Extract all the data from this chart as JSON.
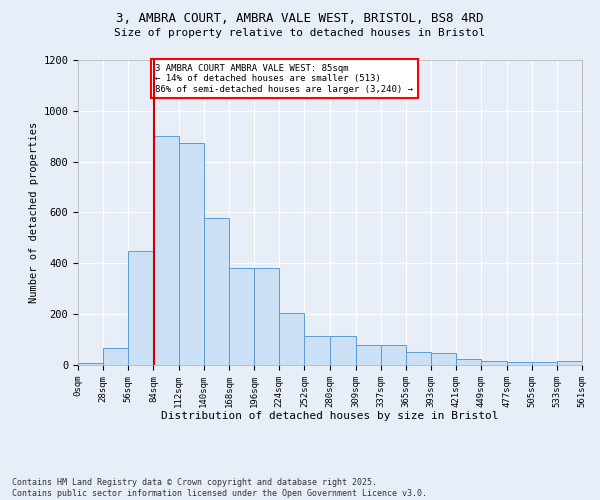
{
  "title_line1": "3, AMBRA COURT, AMBRA VALE WEST, BRISTOL, BS8 4RD",
  "title_line2": "Size of property relative to detached houses in Bristol",
  "xlabel": "Distribution of detached houses by size in Bristol",
  "ylabel": "Number of detached properties",
  "bar_color": "#cce0f5",
  "bar_edge_color": "#5b9bd5",
  "background_color": "#e8eef8",
  "grid_color": "#ffffff",
  "annotation_text": "3 AMBRA COURT AMBRA VALE WEST: 85sqm\n← 14% of detached houses are smaller (513)\n86% of semi-detached houses are larger (3,240) →",
  "vline_x": 85,
  "vline_color": "#cc0000",
  "footer_line1": "Contains HM Land Registry data © Crown copyright and database right 2025.",
  "footer_line2": "Contains public sector information licensed under the Open Government Licence v3.0.",
  "bin_edges": [
    0,
    28,
    56,
    84,
    112,
    140,
    168,
    196,
    224,
    252,
    280,
    309,
    337,
    365,
    393,
    421,
    449,
    477,
    505,
    533,
    561
  ],
  "bin_labels": [
    "0sqm",
    "28sqm",
    "56sqm",
    "84sqm",
    "112sqm",
    "140sqm",
    "168sqm",
    "196sqm",
    "224sqm",
    "252sqm",
    "280sqm",
    "309sqm",
    "337sqm",
    "365sqm",
    "393sqm",
    "421sqm",
    "449sqm",
    "477sqm",
    "505sqm",
    "533sqm",
    "561sqm"
  ],
  "bar_heights": [
    8,
    65,
    450,
    900,
    875,
    580,
    380,
    380,
    205,
    115,
    115,
    80,
    80,
    50,
    47,
    22,
    15,
    13,
    12,
    15,
    0
  ],
  "ylim": [
    0,
    1200
  ],
  "yticks": [
    0,
    200,
    400,
    600,
    800,
    1000,
    1200
  ]
}
